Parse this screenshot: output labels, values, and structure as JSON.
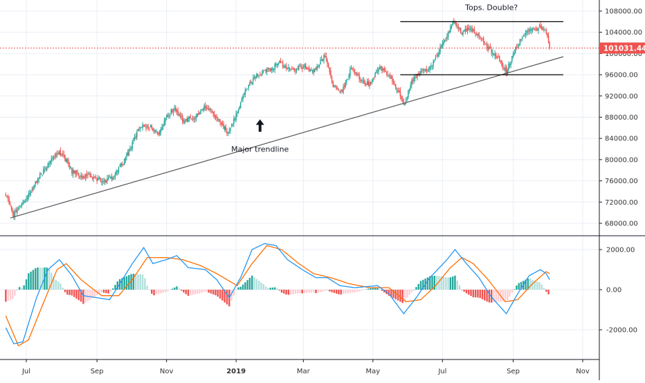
{
  "chart_data": {
    "type": "candlestick",
    "price_pane": {
      "ylim": [
        66000,
        109000
      ],
      "y_ticks": [
        "108000.00",
        "104000.00",
        "100000.00",
        "96000.00",
        "92000.00",
        "88000.00",
        "84000.00",
        "80000.00",
        "76000.00",
        "72000.00",
        "68000.00"
      ],
      "y_tick_values": [
        108000,
        104000,
        100000,
        96000,
        92000,
        88000,
        84000,
        80000,
        76000,
        72000,
        68000
      ],
      "last_price": 101031.44,
      "last_price_label": "101031.44",
      "start_date": "2018-06-13",
      "end_date": "2019-10-03",
      "anchors": [
        {
          "d": "2018-06-13",
          "v": 73500
        },
        {
          "d": "2018-06-20",
          "v": 69500
        },
        {
          "d": "2018-06-30",
          "v": 72600
        },
        {
          "d": "2018-07-12",
          "v": 76600
        },
        {
          "d": "2018-07-20",
          "v": 79000
        },
        {
          "d": "2018-07-28",
          "v": 81300
        },
        {
          "d": "2018-08-02",
          "v": 80800
        },
        {
          "d": "2018-08-10",
          "v": 77800
        },
        {
          "d": "2018-08-18",
          "v": 76800
        },
        {
          "d": "2018-08-25",
          "v": 77000
        },
        {
          "d": "2018-09-06",
          "v": 75800
        },
        {
          "d": "2018-09-14",
          "v": 76500
        },
        {
          "d": "2018-09-25",
          "v": 80000
        },
        {
          "d": "2018-10-02",
          "v": 83000
        },
        {
          "d": "2018-10-08",
          "v": 86000
        },
        {
          "d": "2018-10-15",
          "v": 86500
        },
        {
          "d": "2018-10-25",
          "v": 85000
        },
        {
          "d": "2018-11-01",
          "v": 88200
        },
        {
          "d": "2018-11-08",
          "v": 89600
        },
        {
          "d": "2018-11-16",
          "v": 87300
        },
        {
          "d": "2018-11-26",
          "v": 88000
        },
        {
          "d": "2018-12-05",
          "v": 90000
        },
        {
          "d": "2018-12-14",
          "v": 88200
        },
        {
          "d": "2018-12-25",
          "v": 84900
        },
        {
          "d": "2019-01-02",
          "v": 89000
        },
        {
          "d": "2019-01-10",
          "v": 93500
        },
        {
          "d": "2019-01-20",
          "v": 96000
        },
        {
          "d": "2019-02-01",
          "v": 97200
        },
        {
          "d": "2019-02-08",
          "v": 98300
        },
        {
          "d": "2019-02-18",
          "v": 96800
        },
        {
          "d": "2019-03-01",
          "v": 97600
        },
        {
          "d": "2019-03-10",
          "v": 96400
        },
        {
          "d": "2019-03-20",
          "v": 99600
        },
        {
          "d": "2019-03-27",
          "v": 94000
        },
        {
          "d": "2019-04-04",
          "v": 93000
        },
        {
          "d": "2019-04-12",
          "v": 97200
        },
        {
          "d": "2019-04-20",
          "v": 95000
        },
        {
          "d": "2019-04-28",
          "v": 94200
        },
        {
          "d": "2019-05-07",
          "v": 97300
        },
        {
          "d": "2019-05-15",
          "v": 96000
        },
        {
          "d": "2019-05-23",
          "v": 93000
        },
        {
          "d": "2019-05-28",
          "v": 90200
        },
        {
          "d": "2019-06-04",
          "v": 94500
        },
        {
          "d": "2019-06-12",
          "v": 96500
        },
        {
          "d": "2019-06-19",
          "v": 97000
        },
        {
          "d": "2019-06-28",
          "v": 100600
        },
        {
          "d": "2019-07-05",
          "v": 103000
        },
        {
          "d": "2019-07-10",
          "v": 106000
        },
        {
          "d": "2019-07-18",
          "v": 104000
        },
        {
          "d": "2019-07-25",
          "v": 104500
        },
        {
          "d": "2019-08-02",
          "v": 103600
        },
        {
          "d": "2019-08-10",
          "v": 101000
        },
        {
          "d": "2019-08-18",
          "v": 99400
        },
        {
          "d": "2019-08-26",
          "v": 96500
        },
        {
          "d": "2019-09-02",
          "v": 100600
        },
        {
          "d": "2019-09-10",
          "v": 103500
        },
        {
          "d": "2019-09-18",
          "v": 104600
        },
        {
          "d": "2019-09-25",
          "v": 104800
        },
        {
          "d": "2019-09-30",
          "v": 104200
        },
        {
          "d": "2019-10-03",
          "v": 101031
        }
      ],
      "drawings": [
        {
          "type": "trendline",
          "name": "major-trendline",
          "from": {
            "d": "2018-06-17",
            "v": 69000
          },
          "to": {
            "d": "2019-10-15",
            "v": 99400
          }
        },
        {
          "type": "horizontal",
          "name": "tops-line",
          "from_d": "2019-05-25",
          "to_d": "2019-10-15",
          "v": 106000
        },
        {
          "type": "horizontal",
          "name": "support-line",
          "from_d": "2019-05-25",
          "to_d": "2019-10-15",
          "v": 96000
        }
      ],
      "annotations": [
        {
          "name": "tops-annotation",
          "text": "Tops. Double?",
          "d": "2019-08-13",
          "v": 108200
        },
        {
          "name": "trendline-annotation",
          "text": "Major trendline",
          "d": "2019-01-22",
          "v": 81500
        }
      ]
    },
    "macd_pane": {
      "ylim": [
        -3300,
        2800
      ],
      "y_ticks": [
        "2000.00",
        "0.00",
        "-2000.00"
      ],
      "y_tick_values": [
        2000,
        0,
        -2000
      ],
      "macd_anchors": [
        {
          "d": "2018-06-13",
          "v": -1900
        },
        {
          "d": "2018-06-20",
          "v": -2700
        },
        {
          "d": "2018-06-28",
          "v": -2600
        },
        {
          "d": "2018-07-10",
          "v": -400
        },
        {
          "d": "2018-07-20",
          "v": 1000
        },
        {
          "d": "2018-07-30",
          "v": 1500
        },
        {
          "d": "2018-08-10",
          "v": 700
        },
        {
          "d": "2018-08-20",
          "v": -300
        },
        {
          "d": "2018-09-01",
          "v": -400
        },
        {
          "d": "2018-09-12",
          "v": -500
        },
        {
          "d": "2018-09-20",
          "v": 200
        },
        {
          "d": "2018-10-02",
          "v": 1300
        },
        {
          "d": "2018-10-12",
          "v": 2100
        },
        {
          "d": "2018-10-20",
          "v": 1300
        },
        {
          "d": "2018-11-01",
          "v": 1500
        },
        {
          "d": "2018-11-10",
          "v": 1700
        },
        {
          "d": "2018-11-20",
          "v": 1100
        },
        {
          "d": "2018-12-05",
          "v": 1000
        },
        {
          "d": "2018-12-15",
          "v": 500
        },
        {
          "d": "2018-12-26",
          "v": -400
        },
        {
          "d": "2019-01-05",
          "v": 600
        },
        {
          "d": "2019-01-15",
          "v": 2000
        },
        {
          "d": "2019-01-26",
          "v": 2300
        },
        {
          "d": "2019-02-05",
          "v": 2200
        },
        {
          "d": "2019-02-15",
          "v": 1500
        },
        {
          "d": "2019-02-28",
          "v": 1000
        },
        {
          "d": "2019-03-12",
          "v": 600
        },
        {
          "d": "2019-03-22",
          "v": 600
        },
        {
          "d": "2019-04-02",
          "v": 200
        },
        {
          "d": "2019-04-15",
          "v": 100
        },
        {
          "d": "2019-05-05",
          "v": 200
        },
        {
          "d": "2019-05-15",
          "v": -200
        },
        {
          "d": "2019-05-28",
          "v": -1200
        },
        {
          "d": "2019-06-08",
          "v": -400
        },
        {
          "d": "2019-06-20",
          "v": 600
        },
        {
          "d": "2019-07-05",
          "v": 1500
        },
        {
          "d": "2019-07-12",
          "v": 2000
        },
        {
          "d": "2019-07-22",
          "v": 1300
        },
        {
          "d": "2019-08-02",
          "v": 600
        },
        {
          "d": "2019-08-12",
          "v": -300
        },
        {
          "d": "2019-08-26",
          "v": -1200
        },
        {
          "d": "2019-09-05",
          "v": -200
        },
        {
          "d": "2019-09-15",
          "v": 700
        },
        {
          "d": "2019-09-25",
          "v": 1000
        },
        {
          "d": "2019-09-30",
          "v": 800
        },
        {
          "d": "2019-10-03",
          "v": 500
        }
      ],
      "signal_anchors": [
        {
          "d": "2018-06-13",
          "v": -1300
        },
        {
          "d": "2018-06-24",
          "v": -2800
        },
        {
          "d": "2018-07-03",
          "v": -2500
        },
        {
          "d": "2018-07-15",
          "v": -800
        },
        {
          "d": "2018-07-28",
          "v": 1000
        },
        {
          "d": "2018-08-05",
          "v": 1300
        },
        {
          "d": "2018-08-18",
          "v": 500
        },
        {
          "d": "2018-09-05",
          "v": -300
        },
        {
          "d": "2018-09-20",
          "v": -300
        },
        {
          "d": "2018-10-02",
          "v": 500
        },
        {
          "d": "2018-10-15",
          "v": 1600
        },
        {
          "d": "2018-11-01",
          "v": 1600
        },
        {
          "d": "2018-11-15",
          "v": 1500
        },
        {
          "d": "2018-12-01",
          "v": 1200
        },
        {
          "d": "2018-12-15",
          "v": 800
        },
        {
          "d": "2019-01-02",
          "v": 200
        },
        {
          "d": "2019-01-15",
          "v": 1300
        },
        {
          "d": "2019-01-28",
          "v": 2200
        },
        {
          "d": "2019-02-10",
          "v": 2000
        },
        {
          "d": "2019-02-25",
          "v": 1300
        },
        {
          "d": "2019-03-10",
          "v": 800
        },
        {
          "d": "2019-03-25",
          "v": 600
        },
        {
          "d": "2019-04-10",
          "v": 300
        },
        {
          "d": "2019-04-28",
          "v": 100
        },
        {
          "d": "2019-05-15",
          "v": 100
        },
        {
          "d": "2019-05-30",
          "v": -600
        },
        {
          "d": "2019-06-12",
          "v": -500
        },
        {
          "d": "2019-06-25",
          "v": 200
        },
        {
          "d": "2019-07-08",
          "v": 1100
        },
        {
          "d": "2019-07-18",
          "v": 1600
        },
        {
          "d": "2019-07-28",
          "v": 1300
        },
        {
          "d": "2019-08-10",
          "v": 500
        },
        {
          "d": "2019-08-25",
          "v": -600
        },
        {
          "d": "2019-09-05",
          "v": -500
        },
        {
          "d": "2019-09-18",
          "v": 300
        },
        {
          "d": "2019-09-30",
          "v": 900
        },
        {
          "d": "2019-10-03",
          "v": 800
        }
      ]
    },
    "x_axis": {
      "start_date": "2018-06-11",
      "end_date": "2019-11-14",
      "ticks": [
        {
          "label": "Jul",
          "d": "2018-07-01",
          "bold": false
        },
        {
          "label": "Sep",
          "d": "2018-09-01",
          "bold": false
        },
        {
          "label": "Nov",
          "d": "2018-11-01",
          "bold": false
        },
        {
          "label": "2019",
          "d": "2019-01-01",
          "bold": true
        },
        {
          "label": "Mar",
          "d": "2019-03-01",
          "bold": false
        },
        {
          "label": "May",
          "d": "2019-05-01",
          "bold": false
        },
        {
          "label": "Jul",
          "d": "2019-07-01",
          "bold": false
        },
        {
          "label": "Sep",
          "d": "2019-09-01",
          "bold": false
        },
        {
          "label": "Nov",
          "d": "2019-11-01",
          "bold": false
        }
      ]
    },
    "colors": {
      "up": "#26a69a",
      "down": "#ef5350",
      "hist_up_strong": "#26a69a",
      "hist_up_weak": "#b2dfdb",
      "hist_down_strong": "#ef5350",
      "hist_down_weak": "#ffcdd2",
      "macd_line": "#2196f3",
      "signal_line": "#ff6d00",
      "last_price_label_bg": "#ef5350",
      "drawing": "#000000",
      "grid": "#e9eef5"
    },
    "grid": true
  }
}
